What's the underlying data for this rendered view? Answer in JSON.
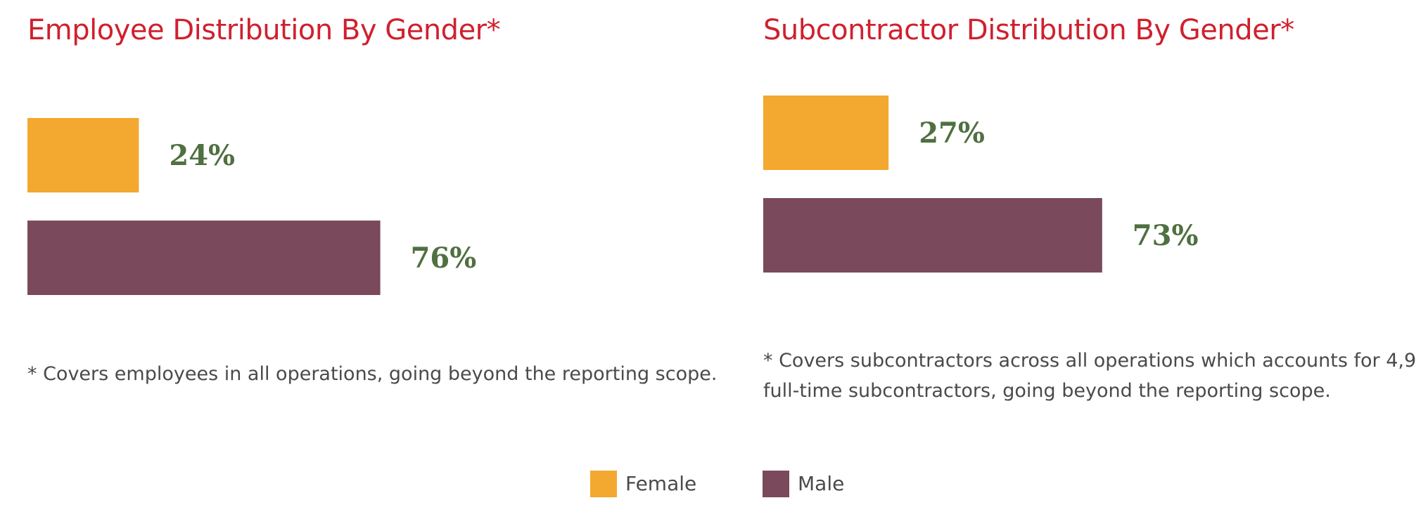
{
  "colors": {
    "title": "#d0202e",
    "female": "#f3a82f",
    "male": "#7a495c",
    "value_label": "#4f7040",
    "footnote": "#4a4a4a"
  },
  "chart_data": [
    {
      "type": "bar",
      "orientation": "horizontal",
      "title": "Employee Distribution By Gender*",
      "categories": [
        "Female",
        "Male"
      ],
      "values": [
        24,
        76
      ],
      "value_labels": [
        "24%",
        "76%"
      ],
      "unit": "%",
      "xlim": [
        0,
        100
      ],
      "grid": false,
      "axes_visible": false,
      "footnote_lines": [
        "* Covers employees in all operations, going beyond the reporting scope."
      ]
    },
    {
      "type": "bar",
      "orientation": "horizontal",
      "title": "Subcontractor Distribution By Gender*",
      "categories": [
        "Female",
        "Male"
      ],
      "values": [
        27,
        73
      ],
      "value_labels": [
        "27%",
        "73%"
      ],
      "unit": "%",
      "xlim": [
        0,
        100
      ],
      "grid": false,
      "axes_visible": false,
      "footnote_lines": [
        "* Covers subcontractors across all operations which accounts for 4,9",
        "full-time subcontractors, going beyond the reporting scope."
      ]
    }
  ],
  "legend": {
    "placement": "bottom-center",
    "items": [
      {
        "label": "Female",
        "color": "#f3a82f"
      },
      {
        "label": "Male",
        "color": "#7a495c"
      }
    ]
  }
}
